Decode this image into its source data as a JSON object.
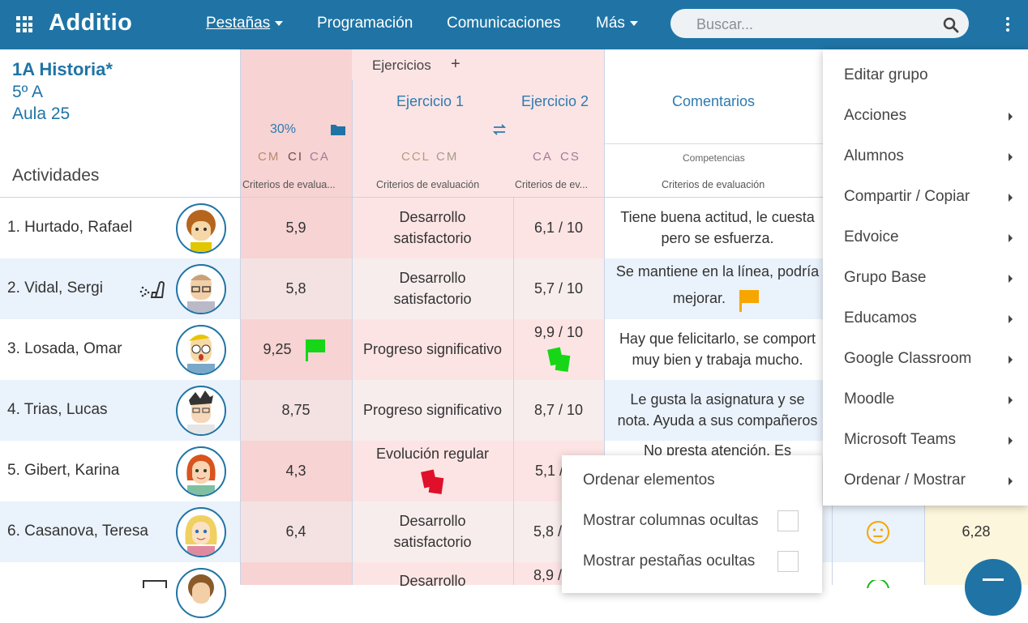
{
  "topbar": {
    "brand": "Additio",
    "nav": {
      "pestanas": "Pestañas",
      "programacion": "Programación",
      "comunicaciones": "Comunicaciones",
      "mas": "Más"
    },
    "search_placeholder": "Buscar..."
  },
  "group": {
    "title": "1A Historia*",
    "class": "5º A",
    "room": "Aula 25",
    "activities_label": "Actividades"
  },
  "columns": {
    "ejercicios": "Ejercicios",
    "add_symbol": "+",
    "percent": "30%",
    "ej1": "Ejercicio 1",
    "ej2": "Ejercicio 2",
    "comentarios": "Comentarios",
    "comp_main": [
      "CM",
      "CI",
      "CA"
    ],
    "comp_ej1": [
      "CCL",
      "CM"
    ],
    "comp_ej2": [
      "CA",
      "CS"
    ],
    "comp_com": "Competencias",
    "crit_main": "Criterios de evalua...",
    "crit_ej1": "Criterios de evaluación",
    "crit_ej2": "Criterios de ev...",
    "crit_com": "Criterios de evaluación"
  },
  "students": [
    {
      "name": "1. Hurtado, Rafael",
      "main": "5,9",
      "ej1": [
        "Desarrollo",
        "satisfactorio"
      ],
      "ej2": "6,1 / 10",
      "comment": [
        "Tiene buena actitud, le cuesta",
        "pero se esfuerza."
      ]
    },
    {
      "name": "2. Vidal, Sergi",
      "main": "5,8",
      "ej1": [
        "Desarrollo",
        "satisfactorio"
      ],
      "ej2": "5,7 / 10",
      "comment": [
        "Se mantiene en la línea, podría",
        "mejorar."
      ]
    },
    {
      "name": "3. Losada, Omar",
      "main": "9,25",
      "ej1": [
        "Progreso significativo"
      ],
      "ej2": "9,9 / 10",
      "comment": [
        "Hay que felicitarlo, se comport",
        "muy bien y trabaja mucho."
      ]
    },
    {
      "name": "4. Trias, Lucas",
      "main": "8,75",
      "ej1": [
        "Progreso significativo"
      ],
      "ej2": "8,7 / 10",
      "comment": [
        "Le gusta la asignatura y se",
        "nota. Ayuda a sus compañeros"
      ]
    },
    {
      "name": "5. Gibert, Karina",
      "main": "4,3",
      "ej1": [
        "Evolución regular"
      ],
      "ej2": "5,1 /",
      "comment": [
        "No presta atención. Es"
      ]
    },
    {
      "name": "6. Casanova, Teresa",
      "main": "6,4",
      "ej1": [
        "Desarrollo",
        "satisfactorio"
      ],
      "ej2": "5,8 /",
      "comment": []
    },
    {
      "name": "",
      "main": "",
      "ej1": [
        "Desarrollo"
      ],
      "ej2": "8,9 /",
      "comment": []
    }
  ],
  "right_column": {
    "row6_value": "6,28"
  },
  "group_menu": [
    {
      "label": "Editar grupo",
      "submenu": false
    },
    {
      "label": "Acciones",
      "submenu": true
    },
    {
      "label": "Alumnos",
      "submenu": true
    },
    {
      "label": "Compartir / Copiar",
      "submenu": true
    },
    {
      "label": "Edvoice",
      "submenu": true
    },
    {
      "label": "Grupo Base",
      "submenu": true
    },
    {
      "label": "Educamos",
      "submenu": true
    },
    {
      "label": "Google Classroom",
      "submenu": true
    },
    {
      "label": "Moodle",
      "submenu": true
    },
    {
      "label": "Microsoft Teams",
      "submenu": true
    },
    {
      "label": "Ordenar / Mostrar",
      "submenu": true
    }
  ],
  "sub_menu": {
    "ordenar": "Ordenar elementos",
    "mostrar_columnas": "Mostrar columnas ocultas",
    "mostrar_pestanas": "Mostrar pestañas ocultas"
  },
  "colors": {
    "brand": "#1f74a5",
    "flag_orange": "#f7a600",
    "flag_green": "#17d617",
    "card_red": "#e0102a"
  },
  "icons": [
    "apps-grid-icon",
    "search-icon",
    "kebab-menu-icon",
    "folder-icon",
    "swap-icon",
    "asthma-inhaler-icon",
    "flag-icon",
    "cards-icon",
    "neutral-face-icon",
    "submenu-arrow-icon",
    "menu-fab-icon"
  ]
}
